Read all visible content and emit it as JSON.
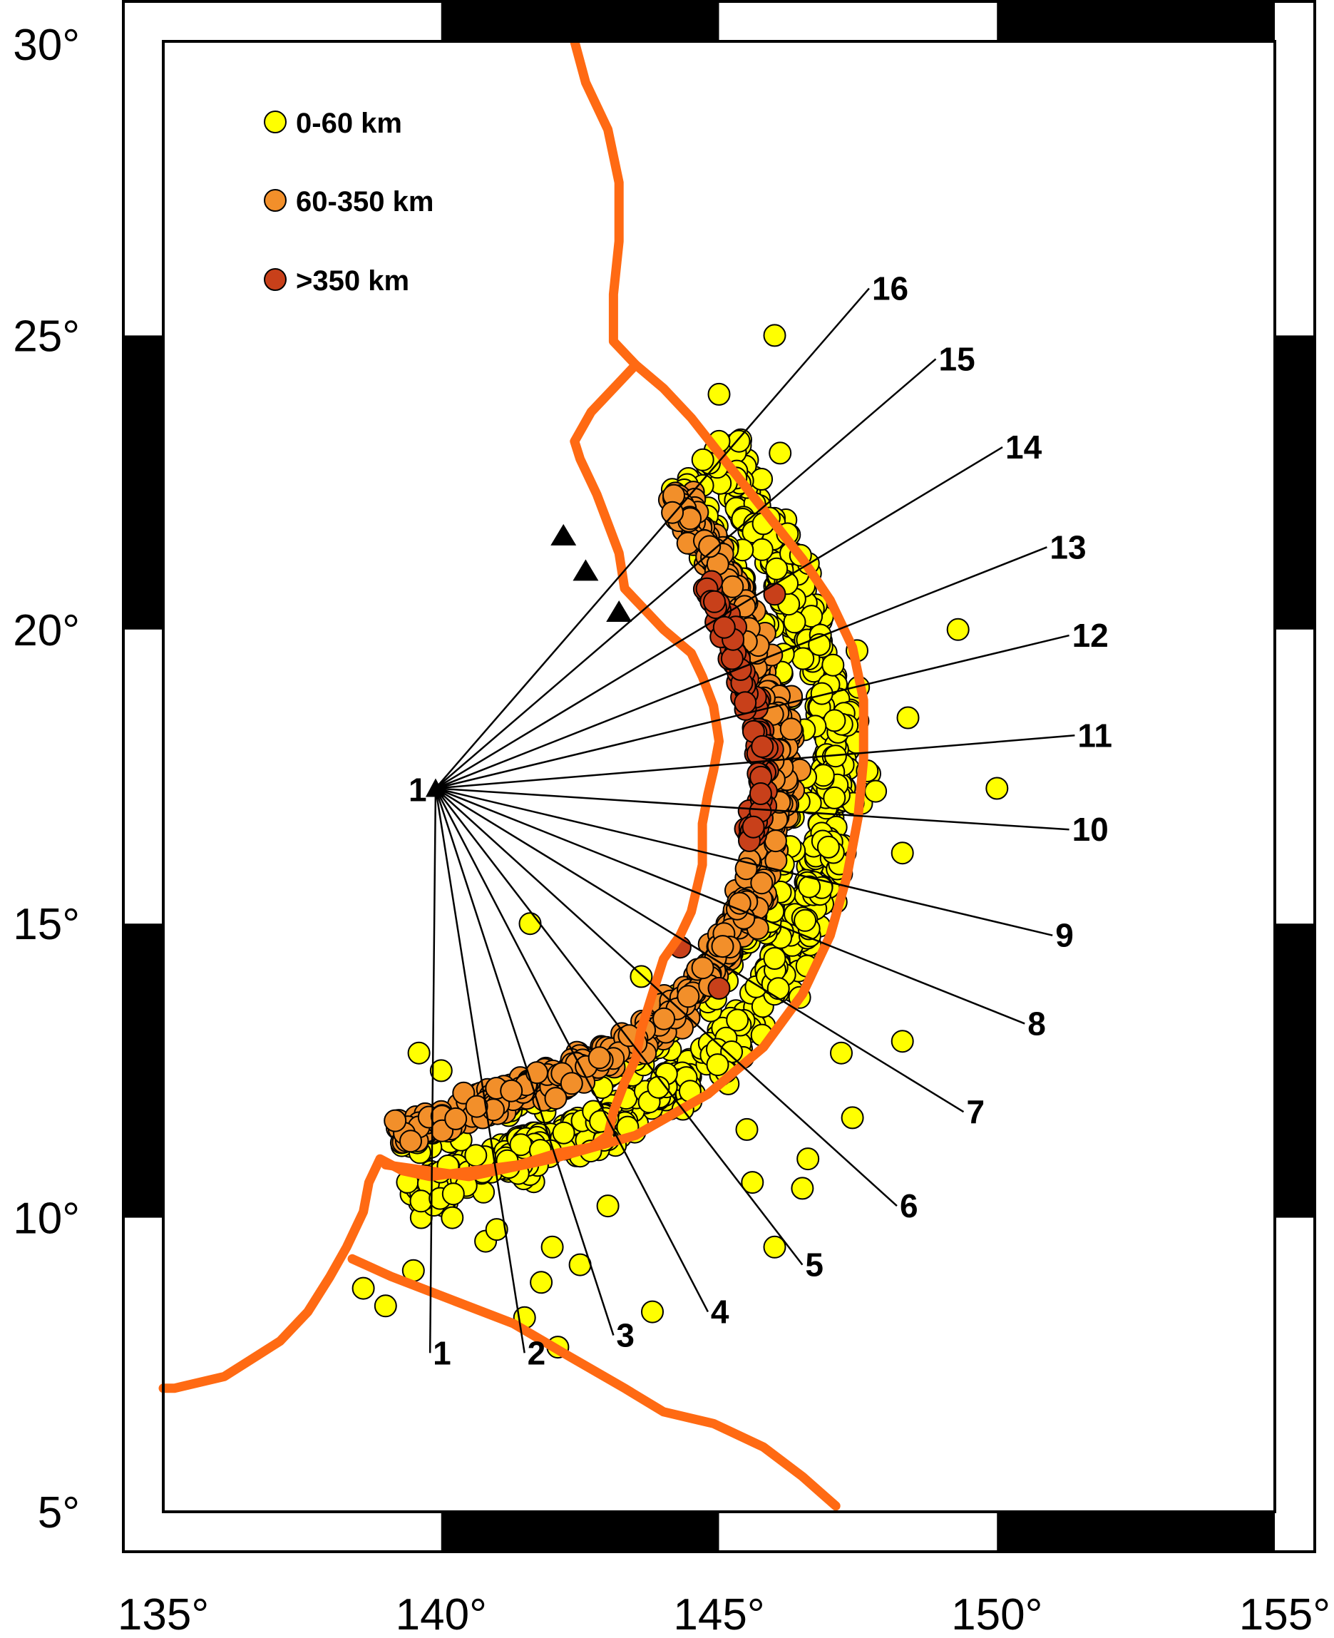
{
  "map": {
    "lon_range": [
      135,
      155
    ],
    "lat_range": [
      5,
      30
    ],
    "lon_ticks": [
      "135°",
      "140°",
      "145°",
      "150°",
      "155°"
    ],
    "lat_ticks": [
      "5°",
      "10°",
      "15°",
      "20°",
      "25°",
      "30°"
    ],
    "frame_style": "alternating black/white scale bar, 5° segments",
    "grid": false
  },
  "legend": {
    "placement": "top-left",
    "items": [
      {
        "label": "0-60 km",
        "color": "#ffff00"
      },
      {
        "label": "60-350 km",
        "color": "#f28f2a"
      },
      {
        "label": ">350 km",
        "color": "#c8401a"
      }
    ]
  },
  "colors": {
    "shallow": "#ffff00",
    "intermediate": "#f28f2a",
    "deep": "#c8401a",
    "plate_boundary": "#ff6a13",
    "profile_lines": "#000000"
  },
  "profiles": {
    "origin": {
      "lon": 139.9,
      "lat": 17.3,
      "label": "1"
    },
    "labels": [
      {
        "label": "1",
        "lon": 139.8,
        "lat": 7.7
      },
      {
        "label": "2",
        "lon": 141.5,
        "lat": 7.7
      },
      {
        "label": "3",
        "lon": 143.1,
        "lat": 8.0
      },
      {
        "label": "4",
        "lon": 144.8,
        "lat": 8.4
      },
      {
        "label": "5",
        "lon": 146.5,
        "lat": 9.2
      },
      {
        "label": "6",
        "lon": 148.2,
        "lat": 10.2
      },
      {
        "label": "7",
        "lon": 149.4,
        "lat": 11.8
      },
      {
        "label": "8",
        "lon": 150.5,
        "lat": 13.3
      },
      {
        "label": "9",
        "lon": 151.0,
        "lat": 14.8
      },
      {
        "label": "10",
        "lon": 151.3,
        "lat": 16.6
      },
      {
        "label": "11",
        "lon": 151.4,
        "lat": 18.2
      },
      {
        "label": "12",
        "lon": 151.3,
        "lat": 19.9
      },
      {
        "label": "13",
        "lon": 150.9,
        "lat": 21.4
      },
      {
        "label": "14",
        "lon": 150.1,
        "lat": 23.1
      },
      {
        "label": "15",
        "lon": 148.9,
        "lat": 24.6
      },
      {
        "label": "16",
        "lon": 147.7,
        "lat": 25.8
      }
    ]
  },
  "plate_boundaries": [
    {
      "name": "",
      "points": [
        [
          142.4,
          30.0
        ],
        [
          142.6,
          29.3
        ],
        [
          143.0,
          28.5
        ],
        [
          143.2,
          27.6
        ],
        [
          143.2,
          26.6
        ],
        [
          143.1,
          25.7
        ],
        [
          143.1,
          24.9
        ],
        [
          143.5,
          24.5
        ],
        [
          143.2,
          24.2
        ],
        [
          142.7,
          23.7
        ],
        [
          142.4,
          23.2
        ],
        [
          142.5,
          22.9
        ],
        [
          142.8,
          22.3
        ],
        [
          143.0,
          21.8
        ],
        [
          143.2,
          21.3
        ],
        [
          143.3,
          20.7
        ],
        [
          143.6,
          20.4
        ],
        [
          144.0,
          20.0
        ],
        [
          144.5,
          19.6
        ],
        [
          144.7,
          19.2
        ],
        [
          144.9,
          18.7
        ],
        [
          145.0,
          18.1
        ],
        [
          144.9,
          17.6
        ],
        [
          144.8,
          17.2
        ],
        [
          144.7,
          16.7
        ],
        [
          144.7,
          16.0
        ],
        [
          144.6,
          15.6
        ],
        [
          144.5,
          15.2
        ],
        [
          144.3,
          14.8
        ],
        [
          144.0,
          14.4
        ],
        [
          143.8,
          13.8
        ],
        [
          143.6,
          13.2
        ],
        [
          143.5,
          12.7
        ],
        [
          143.3,
          12.3
        ],
        [
          143.1,
          11.8
        ],
        [
          143.0,
          11.4
        ],
        [
          142.7,
          11.2
        ],
        [
          142.1,
          11.1
        ],
        [
          141.4,
          10.9
        ],
        [
          140.6,
          10.8
        ],
        [
          139.8,
          10.7
        ],
        [
          139.3,
          10.8
        ],
        [
          138.9,
          11.0
        ],
        [
          138.7,
          10.6
        ],
        [
          138.6,
          10.1
        ],
        [
          138.3,
          9.5
        ],
        [
          138.0,
          9.0
        ],
        [
          137.6,
          8.4
        ],
        [
          137.1,
          7.9
        ],
        [
          136.1,
          7.3
        ],
        [
          135.2,
          7.1
        ],
        [
          135.0,
          7.1
        ]
      ]
    },
    {
      "name": "",
      "points": [
        [
          138.4,
          9.3
        ],
        [
          139.1,
          9.0
        ],
        [
          140.2,
          8.6
        ],
        [
          141.3,
          8.2
        ],
        [
          142.2,
          7.7
        ],
        [
          143.3,
          7.1
        ],
        [
          144.0,
          6.7
        ],
        [
          144.9,
          6.5
        ],
        [
          145.8,
          6.1
        ],
        [
          146.5,
          5.6
        ],
        [
          147.1,
          5.1
        ]
      ]
    },
    {
      "name": "",
      "points": [
        [
          139.0,
          10.9
        ],
        [
          140.5,
          10.7
        ],
        [
          142.0,
          11.0
        ],
        [
          143.5,
          11.4
        ],
        [
          144.8,
          12.1
        ],
        [
          145.8,
          12.9
        ],
        [
          146.5,
          13.8
        ],
        [
          147.0,
          14.8
        ],
        [
          147.3,
          15.8
        ],
        [
          147.5,
          16.8
        ],
        [
          147.6,
          17.8
        ],
        [
          147.6,
          18.8
        ],
        [
          147.4,
          19.7
        ],
        [
          147.0,
          20.5
        ],
        [
          146.5,
          21.2
        ],
        [
          146.0,
          21.8
        ],
        [
          145.5,
          22.4
        ],
        [
          145.0,
          23.0
        ],
        [
          144.5,
          23.6
        ],
        [
          144.0,
          24.1
        ],
        [
          143.5,
          24.5
        ]
      ]
    }
  ]
}
